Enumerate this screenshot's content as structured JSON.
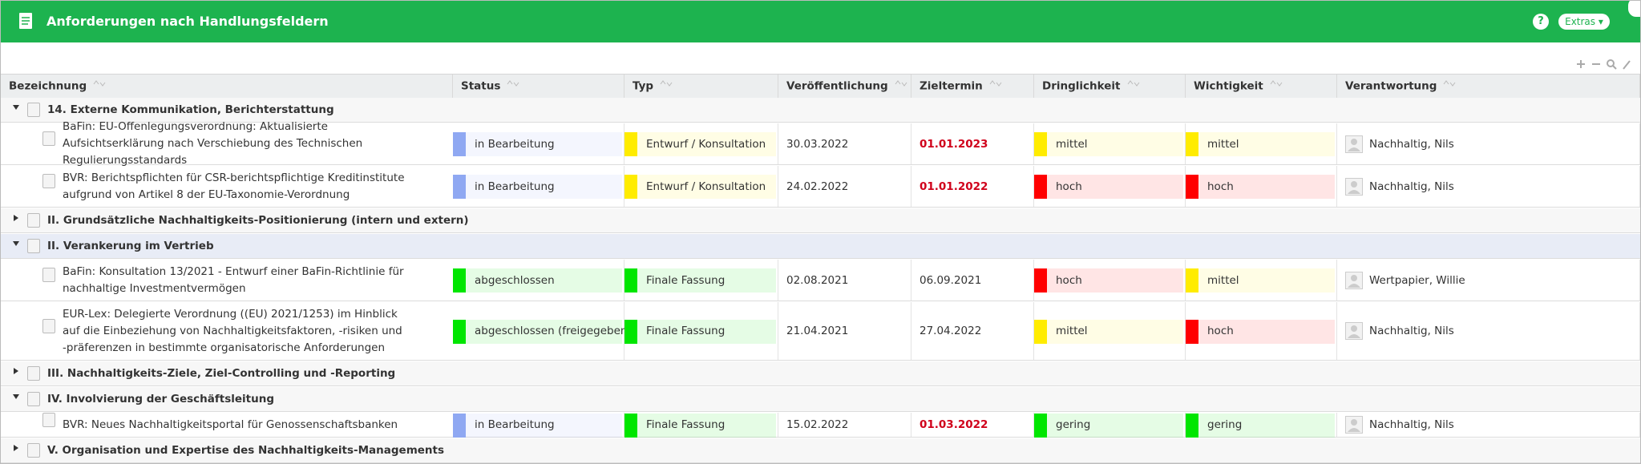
{
  "header": {
    "title": "Anforderungen nach Handlungsfeldern",
    "help": "?",
    "extras": "Extras"
  },
  "columns": [
    "Bezeichnung",
    "Status",
    "Typ",
    "Veröffentlichung",
    "Zieltermin",
    "Dringlichkeit",
    "Wichtigkeit",
    "Verantwortung"
  ],
  "rows": [
    {
      "kind": "group",
      "label": "14. Externe Kommunikation, Berichterstattung",
      "expanded": true
    },
    {
      "kind": "item",
      "name": "BaFin: EU-Offenlegungsverordnung: Aktualisierte Aufsichtserklärung nach Verschiebung des Technischen Regulierungsstandards",
      "status": {
        "text": "in Bearbeitung",
        "color": "#8fa8f2"
      },
      "type": {
        "text": "Entwurf / Konsultation",
        "color": "#ffec00"
      },
      "published": "30.03.2022",
      "due": "01.01.2023",
      "due_color": "#d0021b",
      "urgency": {
        "text": "mittel",
        "color": "#ffec00"
      },
      "importance": {
        "text": "mittel",
        "color": "#ffec00"
      },
      "owner": "Nachhaltig, Nils"
    },
    {
      "kind": "item",
      "name": "BVR: Berichtspflichten für CSR-berichtspflichtige Kreditinstitute aufgrund von Artikel 8 der EU-Taxonomie-Verordnung",
      "status": {
        "text": "in Bearbeitung",
        "color": "#8fa8f2"
      },
      "type": {
        "text": "Entwurf / Konsultation",
        "color": "#ffec00"
      },
      "published": "24.02.2022",
      "due": "01.01.2022",
      "due_color": "#d0021b",
      "urgency": {
        "text": "hoch",
        "color": "#ff0000"
      },
      "importance": {
        "text": "hoch",
        "color": "#ff0000"
      },
      "owner": "Nachhaltig, Nils"
    },
    {
      "kind": "group",
      "label": "II. Grundsätzliche Nachhaltigkeits-Positionierung (intern und extern)",
      "expanded": false
    },
    {
      "kind": "group",
      "label": "II. Verankerung im Vertrieb",
      "expanded": true,
      "selected": true
    },
    {
      "kind": "item",
      "name": "BaFin: Konsultation 13/2021 - Entwurf einer BaFin-Richtlinie für nachhaltige Investmentvermögen",
      "status": {
        "text": "abgeschlossen",
        "color": "#00e600"
      },
      "type": {
        "text": "Finale Fassung",
        "color": "#00e600"
      },
      "published": "02.08.2021",
      "due": "06.09.2021",
      "due_color": "#333333",
      "urgency": {
        "text": "hoch",
        "color": "#ff0000"
      },
      "importance": {
        "text": "mittel",
        "color": "#ffec00"
      },
      "owner": "Wertpapier, Willie"
    },
    {
      "kind": "item",
      "name": "EUR-Lex: Delegierte Verordnung ((EU) 2021/1253) im Hinblick auf die Einbeziehung von Nachhaltigkeitsfaktoren, -risiken und -präferenzen in bestimmte organisatorische Anforderungen",
      "status": {
        "text": "abgeschlossen (freigegeben)",
        "color": "#00e600"
      },
      "type": {
        "text": "Finale Fassung",
        "color": "#00e600"
      },
      "published": "21.04.2021",
      "due": "27.04.2022",
      "due_color": "#333333",
      "urgency": {
        "text": "mittel",
        "color": "#ffec00"
      },
      "importance": {
        "text": "hoch",
        "color": "#ff0000"
      },
      "owner": "Nachhaltig, Nils"
    },
    {
      "kind": "group",
      "label": "III. Nachhaltigkeits-Ziele, Ziel-Controlling und -Reporting",
      "expanded": false
    },
    {
      "kind": "group",
      "label": "IV. Involvierung der Geschäftsleitung",
      "expanded": true
    },
    {
      "kind": "item",
      "name": "BVR: Neues Nachhaltigkeitsportal für Genossenschaftsbanken",
      "status": {
        "text": "in Bearbeitung",
        "color": "#8fa8f2"
      },
      "type": {
        "text": "Finale Fassung",
        "color": "#00e600"
      },
      "published": "15.02.2022",
      "due": "01.03.2022",
      "due_color": "#d0021b",
      "urgency": {
        "text": "gering",
        "color": "#00e600"
      },
      "importance": {
        "text": "gering",
        "color": "#00e600"
      },
      "owner": "Nachhaltig, Nils"
    },
    {
      "kind": "group",
      "label": "V. Organisation und Expertise des Nachhaltigkeits-Managements",
      "expanded": false
    }
  ]
}
